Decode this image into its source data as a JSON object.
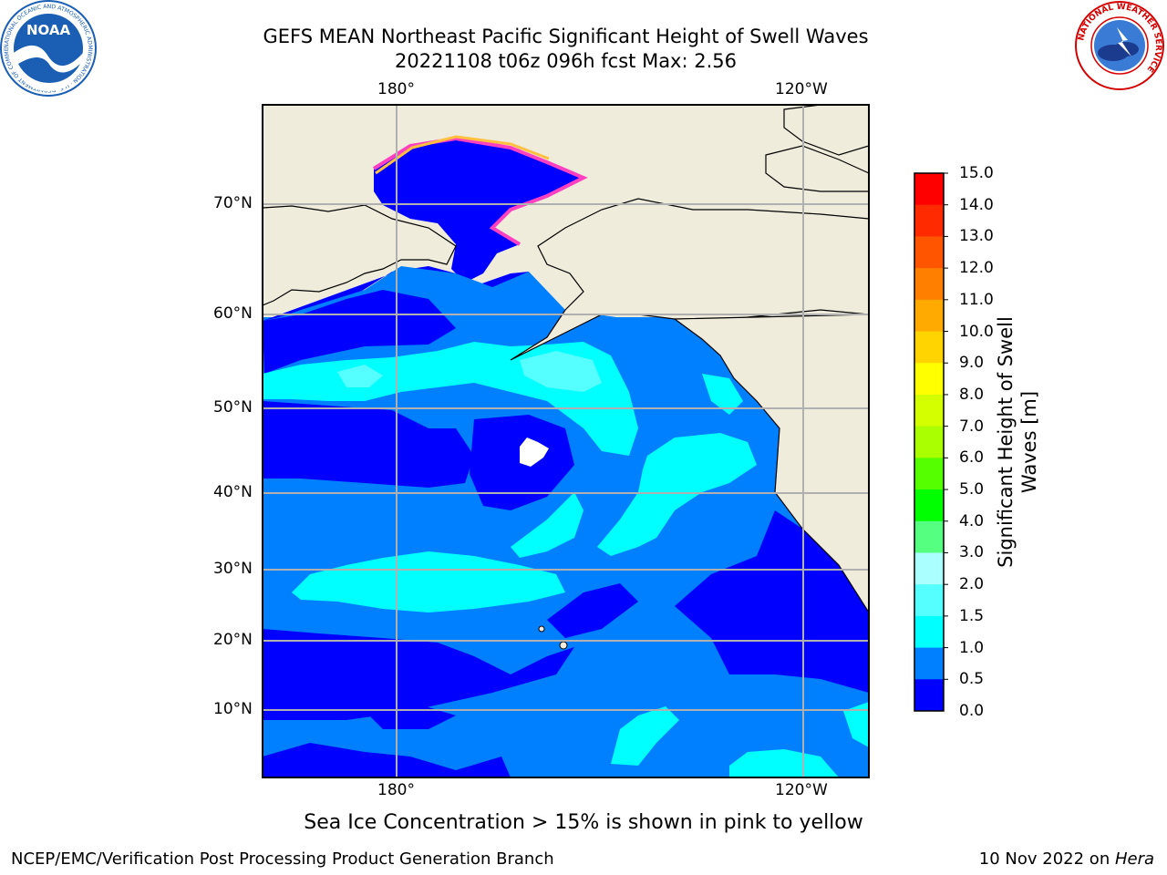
{
  "header": {
    "title_line1": "GEFS MEAN Northeast Pacific Significant Height of Swell Waves",
    "title_line2": "20221108 t06z 096h fcst   Max: 2.56"
  },
  "logos": {
    "left": {
      "text": "NOAA",
      "ring_text": "NATIONAL OCEANIC AND ATMOSPHERIC ADMINISTRATION · U.S. DEPARTMENT OF COMMERCE",
      "color": "#1a5fb4"
    },
    "right": {
      "ring_text": "NATIONAL WEATHER SERVICE",
      "color": "#d40000"
    }
  },
  "map": {
    "lon_ticks_top": [
      "180°",
      "120°W"
    ],
    "lon_ticks_bottom": [
      "180°",
      "120°W"
    ],
    "lat_ticks": [
      "70°N",
      "60°N",
      "50°N",
      "40°N",
      "30°N",
      "20°N",
      "10°N"
    ],
    "colors": {
      "land": "#efecdc",
      "ocean_base": "#0080ff",
      "grid": "#b0b0b0"
    }
  },
  "colorbar": {
    "label": "Significant Height of Swell Waves [m]",
    "ticks": [
      "15.0",
      "14.0",
      "13.0",
      "12.0",
      "11.0",
      "10.0",
      "9.0",
      "8.0",
      "7.0",
      "6.0",
      "5.0",
      "4.0",
      "3.0",
      "2.0",
      "1.5",
      "1.0",
      "0.5",
      "0.0"
    ],
    "colors": [
      "#ff0000",
      "#ff2a00",
      "#ff5500",
      "#ff8000",
      "#ffaa00",
      "#ffd400",
      "#ffff00",
      "#d4ff00",
      "#aaff00",
      "#55ff00",
      "#00ff00",
      "#55ff80",
      "#aaffff",
      "#55ffff",
      "#00ffff",
      "#0080ff",
      "#0000ff"
    ]
  },
  "caption": "Sea Ice Concentration > 15% is shown in pink to yellow",
  "footer": {
    "left": "NCEP/EMC/Verification Post Processing Product Generation Branch",
    "right_date": "10 Nov 2022 on ",
    "right_host": "Hera"
  }
}
